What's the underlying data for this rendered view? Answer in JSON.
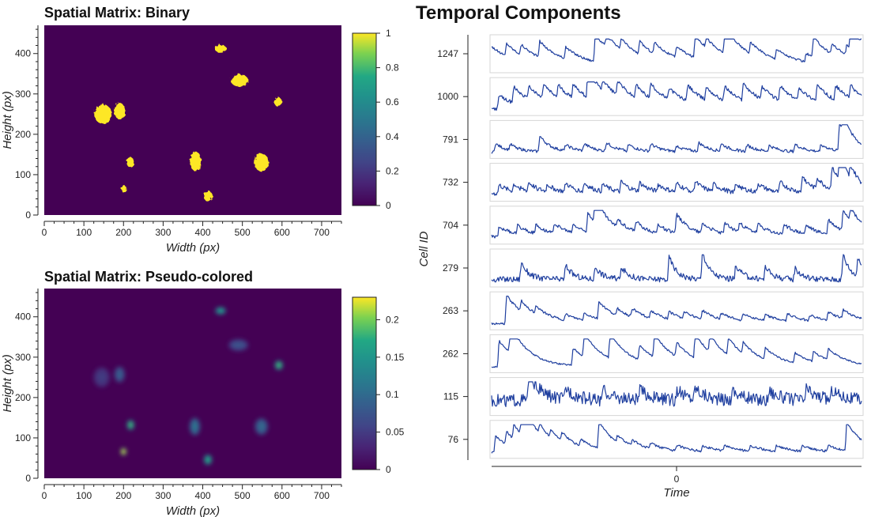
{
  "chart_data": [
    {
      "type": "heatmap",
      "title": "Spatial Matrix: Binary",
      "xlabel": "Width (px)",
      "ylabel": "Height (px)",
      "xlim": [
        0,
        750
      ],
      "ylim": [
        0,
        470
      ],
      "x_ticks": [
        "0",
        "100",
        "200",
        "300",
        "400",
        "500",
        "600",
        "700"
      ],
      "y_ticks": [
        "0",
        "100",
        "200",
        "300",
        "400"
      ],
      "colorbar": {
        "range": [
          0,
          1
        ],
        "ticks": [
          "0",
          "0.2",
          "0.4",
          "0.6",
          "0.8",
          "1"
        ]
      },
      "colors": {
        "background": "#440154",
        "foreground": "#fde725"
      },
      "cells": [
        {
          "x": 445,
          "y": 412,
          "rx": 14,
          "ry": 10
        },
        {
          "x": 493,
          "y": 333,
          "rx": 22,
          "ry": 15
        },
        {
          "x": 590,
          "y": 280,
          "rx": 10,
          "ry": 11
        },
        {
          "x": 148,
          "y": 250,
          "rx": 22,
          "ry": 24
        },
        {
          "x": 190,
          "y": 258,
          "rx": 14,
          "ry": 20
        },
        {
          "x": 217,
          "y": 131,
          "rx": 10,
          "ry": 12
        },
        {
          "x": 382,
          "y": 133,
          "rx": 14,
          "ry": 24
        },
        {
          "x": 548,
          "y": 130,
          "rx": 18,
          "ry": 22
        },
        {
          "x": 200,
          "y": 65,
          "rx": 7,
          "ry": 9
        },
        {
          "x": 413,
          "y": 47,
          "rx": 11,
          "ry": 13
        }
      ]
    },
    {
      "type": "heatmap",
      "title": "Spatial Matrix: Pseudo-colored",
      "xlabel": "Width (px)",
      "ylabel": "Height (px)",
      "xlim": [
        0,
        750
      ],
      "ylim": [
        0,
        470
      ],
      "x_ticks": [
        "0",
        "100",
        "200",
        "300",
        "400",
        "500",
        "600",
        "700"
      ],
      "y_ticks": [
        "0",
        "100",
        "200",
        "300",
        "400"
      ],
      "colorbar": {
        "range": [
          0,
          0.23
        ],
        "ticks": [
          "0",
          "0.05",
          "0.1",
          "0.15",
          "0.2"
        ]
      },
      "colors": {
        "background": "#440154"
      },
      "cells": [
        {
          "x": 445,
          "y": 415,
          "rx": 13,
          "ry": 9,
          "value": 0.13
        },
        {
          "x": 490,
          "y": 330,
          "rx": 24,
          "ry": 14,
          "value": 0.06
        },
        {
          "x": 592,
          "y": 280,
          "rx": 10,
          "ry": 11,
          "value": 0.15
        },
        {
          "x": 145,
          "y": 250,
          "rx": 20,
          "ry": 24,
          "value": 0.04
        },
        {
          "x": 190,
          "y": 257,
          "rx": 13,
          "ry": 19,
          "value": 0.07
        },
        {
          "x": 218,
          "y": 132,
          "rx": 9,
          "ry": 12,
          "value": 0.15
        },
        {
          "x": 380,
          "y": 128,
          "rx": 13,
          "ry": 21,
          "value": 0.09
        },
        {
          "x": 548,
          "y": 128,
          "rx": 16,
          "ry": 20,
          "value": 0.08
        },
        {
          "x": 200,
          "y": 66,
          "rx": 7,
          "ry": 9,
          "value": 0.19
        },
        {
          "x": 413,
          "y": 46,
          "rx": 10,
          "ry": 12,
          "value": 0.14
        }
      ]
    },
    {
      "type": "line",
      "title": "Temporal Components",
      "xlabel": "Time",
      "ylabel": "Cell ID",
      "x_ticks": [
        "0"
      ],
      "line_color": "#1f3f9f",
      "series": [
        {
          "name": "1247",
          "baseline": 0.08,
          "noise": 0.04,
          "decay": 0.06,
          "peaks": [
            [
              0.0,
              0.7
            ],
            [
              0.04,
              0.45
            ],
            [
              0.08,
              0.35
            ],
            [
              0.13,
              0.55
            ],
            [
              0.2,
              0.4
            ],
            [
              0.28,
              0.95
            ],
            [
              0.31,
              0.45
            ],
            [
              0.35,
              0.4
            ],
            [
              0.4,
              0.45
            ],
            [
              0.44,
              0.4
            ],
            [
              0.5,
              0.4
            ],
            [
              0.55,
              0.8
            ],
            [
              0.58,
              0.35
            ],
            [
              0.63,
              1.0
            ],
            [
              0.7,
              0.4
            ],
            [
              0.77,
              0.35
            ],
            [
              0.85,
              0.3
            ],
            [
              0.87,
              0.7
            ],
            [
              0.92,
              0.35
            ],
            [
              0.96,
              0.35
            ],
            [
              0.97,
              0.75
            ],
            [
              1.0,
              0.3
            ]
          ]
        },
        {
          "name": "1000",
          "baseline": 0.1,
          "noise": 0.06,
          "decay": 0.05,
          "peaks": [
            [
              0.02,
              0.45
            ],
            [
              0.06,
              0.55
            ],
            [
              0.1,
              0.45
            ],
            [
              0.14,
              0.5
            ],
            [
              0.18,
              0.45
            ],
            [
              0.22,
              0.5
            ],
            [
              0.26,
              1.0
            ],
            [
              0.3,
              0.4
            ],
            [
              0.34,
              0.55
            ],
            [
              0.39,
              0.45
            ],
            [
              0.43,
              0.5
            ],
            [
              0.48,
              0.4
            ],
            [
              0.53,
              0.55
            ],
            [
              0.58,
              0.45
            ],
            [
              0.63,
              0.5
            ],
            [
              0.68,
              0.6
            ],
            [
              0.73,
              0.45
            ],
            [
              0.78,
              0.5
            ],
            [
              0.83,
              0.45
            ],
            [
              0.88,
              0.55
            ],
            [
              0.93,
              0.5
            ],
            [
              0.97,
              0.45
            ]
          ]
        },
        {
          "name": "791",
          "baseline": 0.08,
          "noise": 0.05,
          "decay": 0.03,
          "peaks": [
            [
              0.01,
              0.3
            ],
            [
              0.05,
              0.2
            ],
            [
              0.13,
              0.55
            ],
            [
              0.2,
              0.2
            ],
            [
              0.25,
              0.25
            ],
            [
              0.31,
              0.3
            ],
            [
              0.37,
              0.22
            ],
            [
              0.43,
              0.25
            ],
            [
              0.5,
              0.2
            ],
            [
              0.56,
              0.3
            ],
            [
              0.62,
              0.25
            ],
            [
              0.69,
              0.22
            ],
            [
              0.75,
              0.2
            ],
            [
              0.82,
              0.25
            ],
            [
              0.89,
              0.25
            ],
            [
              0.94,
              0.98
            ],
            [
              0.95,
              0.7
            ]
          ]
        },
        {
          "name": "732",
          "baseline": 0.12,
          "noise": 0.08,
          "decay": 0.03,
          "peaks": [
            [
              0.02,
              0.3
            ],
            [
              0.06,
              0.25
            ],
            [
              0.1,
              0.3
            ],
            [
              0.15,
              0.25
            ],
            [
              0.2,
              0.3
            ],
            [
              0.25,
              0.3
            ],
            [
              0.3,
              0.25
            ],
            [
              0.35,
              0.35
            ],
            [
              0.4,
              0.3
            ],
            [
              0.45,
              0.25
            ],
            [
              0.5,
              0.3
            ],
            [
              0.55,
              0.35
            ],
            [
              0.6,
              0.25
            ],
            [
              0.66,
              0.3
            ],
            [
              0.72,
              0.3
            ],
            [
              0.78,
              0.35
            ],
            [
              0.84,
              0.55
            ],
            [
              0.88,
              0.4
            ],
            [
              0.92,
              0.8
            ],
            [
              0.94,
              1.0
            ],
            [
              0.97,
              0.5
            ]
          ]
        },
        {
          "name": "704",
          "baseline": 0.12,
          "noise": 0.06,
          "decay": 0.04,
          "peaks": [
            [
              0.02,
              0.35
            ],
            [
              0.07,
              0.3
            ],
            [
              0.12,
              0.3
            ],
            [
              0.17,
              0.35
            ],
            [
              0.22,
              0.3
            ],
            [
              0.26,
              0.7
            ],
            [
              0.28,
              0.95
            ],
            [
              0.34,
              0.3
            ],
            [
              0.39,
              0.35
            ],
            [
              0.45,
              0.3
            ],
            [
              0.5,
              0.65
            ],
            [
              0.57,
              0.35
            ],
            [
              0.63,
              0.35
            ],
            [
              0.67,
              0.3
            ],
            [
              0.72,
              0.3
            ],
            [
              0.79,
              0.35
            ],
            [
              0.85,
              0.3
            ],
            [
              0.91,
              0.5
            ],
            [
              0.95,
              0.75
            ],
            [
              0.97,
              0.45
            ]
          ]
        },
        {
          "name": "279",
          "baseline": 0.1,
          "noise": 0.1,
          "decay": 0.02,
          "peaks": [
            [
              0.08,
              0.6
            ],
            [
              0.2,
              0.5
            ],
            [
              0.28,
              0.45
            ],
            [
              0.35,
              0.45
            ],
            [
              0.48,
              0.8
            ],
            [
              0.57,
              0.95
            ],
            [
              0.66,
              0.5
            ],
            [
              0.74,
              0.45
            ],
            [
              0.82,
              0.4
            ],
            [
              0.95,
              0.9
            ],
            [
              0.99,
              0.7
            ]
          ]
        },
        {
          "name": "263",
          "baseline": 0.08,
          "noise": 0.04,
          "decay": 0.05,
          "peaks": [
            [
              0.04,
              1.0
            ],
            [
              0.08,
              0.35
            ],
            [
              0.12,
              0.25
            ],
            [
              0.2,
              0.2
            ],
            [
              0.25,
              0.25
            ],
            [
              0.29,
              0.6
            ],
            [
              0.34,
              0.25
            ],
            [
              0.38,
              0.3
            ],
            [
              0.43,
              0.25
            ],
            [
              0.48,
              0.25
            ],
            [
              0.52,
              0.25
            ],
            [
              0.57,
              0.3
            ],
            [
              0.62,
              0.2
            ],
            [
              0.68,
              0.25
            ],
            [
              0.74,
              0.2
            ],
            [
              0.8,
              0.25
            ],
            [
              0.86,
              0.2
            ],
            [
              0.91,
              0.3
            ],
            [
              0.95,
              0.3
            ]
          ]
        },
        {
          "name": "262",
          "baseline": 0.08,
          "noise": 0.03,
          "decay": 0.05,
          "peaks": [
            [
              0.02,
              0.9
            ],
            [
              0.05,
              1.0
            ],
            [
              0.22,
              0.6
            ],
            [
              0.25,
              0.85
            ],
            [
              0.32,
              0.9
            ],
            [
              0.4,
              0.5
            ],
            [
              0.44,
              0.85
            ],
            [
              0.5,
              0.5
            ],
            [
              0.55,
              0.85
            ],
            [
              0.59,
              0.6
            ],
            [
              0.64,
              0.6
            ],
            [
              0.68,
              0.4
            ],
            [
              0.74,
              0.4
            ],
            [
              0.82,
              0.35
            ],
            [
              0.87,
              0.35
            ],
            [
              0.91,
              0.4
            ]
          ]
        },
        {
          "name": "115",
          "baseline": 0.3,
          "noise": 0.22,
          "decay": 0.03,
          "peaks": [
            [
              0.1,
              1.0
            ],
            [
              0.2,
              0.4
            ],
            [
              0.3,
              0.35
            ],
            [
              0.4,
              0.35
            ],
            [
              0.5,
              0.35
            ],
            [
              0.55,
              0.4
            ],
            [
              0.65,
              0.35
            ],
            [
              0.75,
              0.35
            ],
            [
              0.85,
              0.4
            ],
            [
              0.92,
              0.35
            ]
          ]
        },
        {
          "name": "76",
          "baseline": 0.06,
          "noise": 0.04,
          "decay": 0.045,
          "peaks": [
            [
              0.01,
              0.6
            ],
            [
              0.04,
              0.45
            ],
            [
              0.06,
              0.5
            ],
            [
              0.08,
              0.8
            ],
            [
              0.1,
              0.4
            ],
            [
              0.13,
              0.35
            ],
            [
              0.16,
              0.3
            ],
            [
              0.19,
              0.3
            ],
            [
              0.24,
              0.25
            ],
            [
              0.29,
              0.95
            ],
            [
              0.34,
              0.25
            ],
            [
              0.38,
              0.2
            ],
            [
              0.43,
              0.2
            ],
            [
              0.5,
              0.2
            ],
            [
              0.57,
              0.2
            ],
            [
              0.63,
              0.2
            ],
            [
              0.7,
              0.2
            ],
            [
              0.77,
              0.2
            ],
            [
              0.84,
              0.2
            ],
            [
              0.91,
              0.2
            ],
            [
              0.96,
              1.0
            ]
          ]
        }
      ]
    }
  ]
}
